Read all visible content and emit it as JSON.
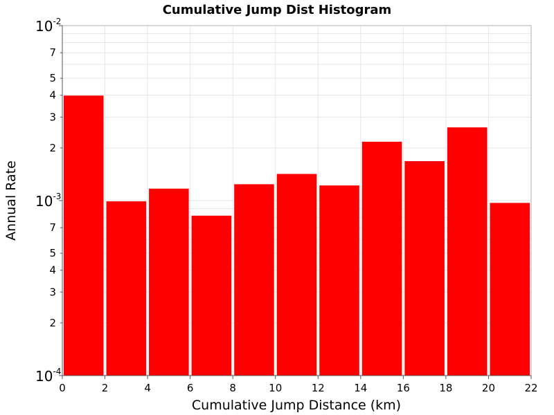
{
  "chart_data": {
    "type": "bar",
    "title": "Cumulative Jump Dist Histogram",
    "xlabel": "Cumulative Jump Distance (km)",
    "ylabel": "Annual Rate",
    "xlim": [
      0,
      22
    ],
    "ylim": [
      0.0001,
      0.01
    ],
    "yscale": "log",
    "grid": true,
    "bar_color": "#ff0000",
    "x_ticks": [
      "0",
      "2",
      "4",
      "6",
      "8",
      "10",
      "12",
      "14",
      "16",
      "18",
      "20",
      "22"
    ],
    "y_major_ticks": [
      {
        "value": 0.0001,
        "base": "10",
        "exp": "-4"
      },
      {
        "value": 0.001,
        "base": "10",
        "exp": "-3"
      },
      {
        "value": 0.01,
        "base": "10",
        "exp": "-2"
      }
    ],
    "y_minor_labels": [
      "2",
      "3",
      "4",
      "5",
      "7"
    ],
    "bins": [
      {
        "x0": 0,
        "x1": 2,
        "value": 0.00398
      },
      {
        "x0": 2,
        "x1": 4,
        "value": 0.00099
      },
      {
        "x0": 4,
        "x1": 6,
        "value": 0.00117
      },
      {
        "x0": 6,
        "x1": 8,
        "value": 0.00082
      },
      {
        "x0": 8,
        "x1": 10,
        "value": 0.00124
      },
      {
        "x0": 10,
        "x1": 12,
        "value": 0.00142
      },
      {
        "x0": 12,
        "x1": 14,
        "value": 0.00122
      },
      {
        "x0": 14,
        "x1": 16,
        "value": 0.00217
      },
      {
        "x0": 16,
        "x1": 18,
        "value": 0.00168
      },
      {
        "x0": 18,
        "x1": 20,
        "value": 0.00262
      },
      {
        "x0": 20,
        "x1": 22,
        "value": 0.00097
      }
    ]
  }
}
